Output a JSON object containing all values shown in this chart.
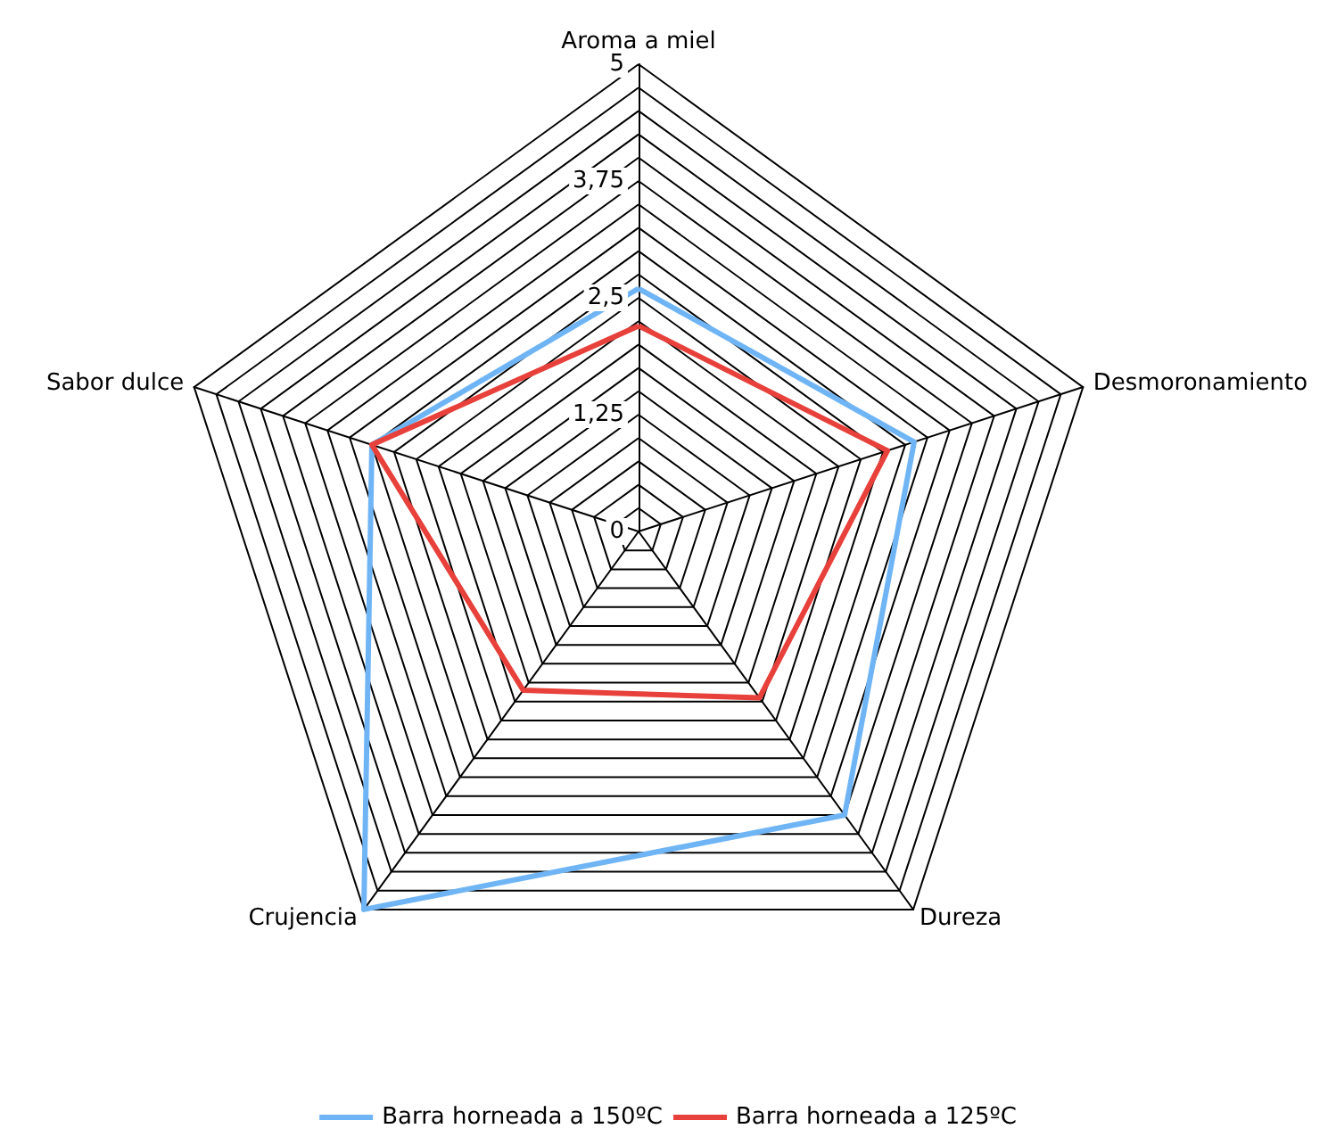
{
  "chart_data": {
    "type": "radar",
    "categories": [
      "Aroma a miel",
      "Desmoronamiento",
      "Dureza",
      "Crujencia",
      "Sabor dulce"
    ],
    "series": [
      {
        "name": "Barra horneada a 150ºC",
        "color": "#6fb5f5",
        "values": [
          2.6,
          3.1,
          3.75,
          5,
          3.0
        ]
      },
      {
        "name": "Barra horneada a 125ºC",
        "color": "#e8403a",
        "values": [
          2.2,
          2.8,
          2.2,
          2.1,
          3.0
        ]
      }
    ],
    "ylim": [
      0,
      5
    ],
    "yticks": [
      0,
      {
        "value": 1.25,
        "label": "1,25"
      },
      {
        "value": 2.5,
        "label": "2,5"
      },
      {
        "value": 3.75,
        "label": "3,75"
      },
      5
    ],
    "grid": true,
    "legend": "bottom",
    "marker": "none"
  }
}
